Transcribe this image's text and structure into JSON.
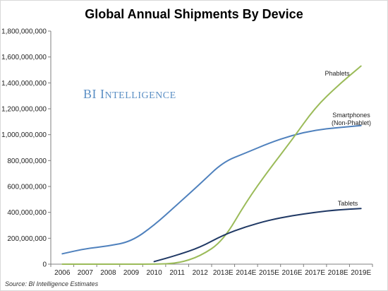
{
  "chart_data": {
    "type": "line",
    "title": "Global Annual Shipments By Device",
    "source": "Source: BI Intelligence Estimates",
    "watermark": {
      "first": "BI",
      "rest_initial": "I",
      "rest": "NTELLIGENCE"
    },
    "ylim": [
      0,
      1800000000
    ],
    "y_ticks": [
      {
        "value": 0,
        "label": "0"
      },
      {
        "value": 200000000,
        "label": "200,000,000"
      },
      {
        "value": 400000000,
        "label": "400,000,000"
      },
      {
        "value": 600000000,
        "label": "600,000,000"
      },
      {
        "value": 800000000,
        "label": "800,000,000"
      },
      {
        "value": 1000000000,
        "label": "1,000,000,000"
      },
      {
        "value": 1200000000,
        "label": "1,200,000,000"
      },
      {
        "value": 1400000000,
        "label": "1,400,000,000"
      },
      {
        "value": 1600000000,
        "label": "1,600,000,000"
      },
      {
        "value": 1800000000,
        "label": "1,800,000,000"
      }
    ],
    "categories": [
      "2006",
      "2007",
      "2008",
      "2009",
      "2010",
      "2011",
      "2012",
      "2013E",
      "2014E",
      "2015E",
      "2016E",
      "2017E",
      "2018E",
      "2019E"
    ],
    "series": [
      {
        "name": "Smartphones (Non-Phablet)",
        "label_lines": [
          "Smartphones",
          "(Non-Phablet)"
        ],
        "color": "#4f81bd",
        "values": [
          80000000,
          120000000,
          140000000,
          175000000,
          300000000,
          460000000,
          620000000,
          790000000,
          860000000,
          935000000,
          995000000,
          1035000000,
          1055000000,
          1070000000
        ]
      },
      {
        "name": "Phablets",
        "label_lines": [
          "Phablets"
        ],
        "color": "#9bbb59",
        "values": [
          0,
          0,
          0,
          0,
          0,
          5000000,
          60000000,
          180000000,
          480000000,
          730000000,
          960000000,
          1210000000,
          1380000000,
          1530000000
        ]
      },
      {
        "name": "Tablets",
        "label_lines": [
          "Tablets"
        ],
        "color": "#1f3864",
        "values": [
          null,
          null,
          null,
          null,
          20000000,
          70000000,
          130000000,
          225000000,
          290000000,
          340000000,
          375000000,
          400000000,
          420000000,
          430000000
        ]
      }
    ]
  }
}
